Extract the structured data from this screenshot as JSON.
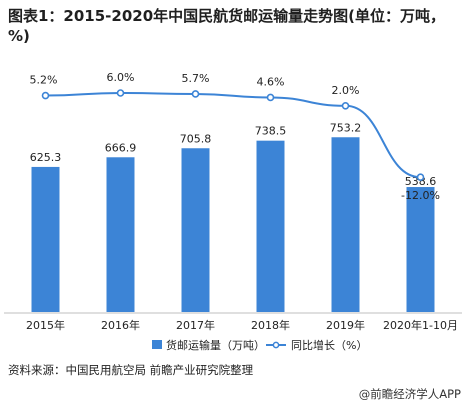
{
  "title": "图表1：2015-2020年中国民航货邮运输量走势图(单位：万吨，%)",
  "source": "资料来源：中国民用航空局 前瞻产业研究院整理",
  "watermark": "@前瞻经济学人APP",
  "colors": {
    "bar": "#3c84d6",
    "line": "#3c84d6",
    "text": "#222222"
  },
  "chart_data": {
    "type": "bar",
    "categories": [
      "2015年",
      "2016年",
      "2017年",
      "2018年",
      "2019年",
      "2020年1-10月"
    ],
    "series": [
      {
        "name": "货邮运输量（万吨）",
        "type": "bar",
        "values": [
          625.3,
          666.9,
          705.8,
          738.5,
          753.2,
          538.6
        ],
        "labels": [
          "625.3",
          "666.9",
          "705.8",
          "738.5",
          "753.2",
          "538.6"
        ]
      },
      {
        "name": "同比增长（%）",
        "type": "line",
        "values": [
          5.2,
          6.0,
          5.7,
          4.6,
          2.0,
          -12.0
        ],
        "labels": [
          "5.2%",
          "6.0%",
          "5.7%",
          "4.6%",
          "2.0%",
          "-12.0%"
        ]
      }
    ],
    "legend": "bottom",
    "grid": false
  }
}
